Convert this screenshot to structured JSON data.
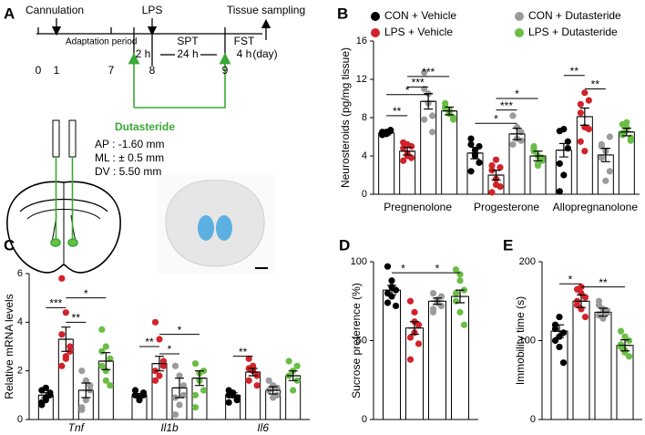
{
  "panel_labels": [
    "A",
    "B",
    "C",
    "D",
    "E"
  ],
  "timeline": {
    "cannulation": "Cannulation",
    "adaptation": "Adaptation period",
    "lps": "LPS",
    "tissue": "Tissue sampling",
    "spt": "SPT",
    "fst": "FST",
    "h2": "2 h",
    "h24": "24 h",
    "h4": "4 h",
    "unit": "(day)",
    "day_labels": [
      "0",
      "1",
      "7",
      "8",
      "9"
    ],
    "drug": "Dutasteride",
    "coords": [
      "AP : -1.60 mm",
      "ML : ± 0.5 mm",
      "DV : 5.50 mm"
    ]
  },
  "chart_data": [
    {
      "type": "bar",
      "ylabel": "Neurosteroids (pg/mg tissue)",
      "categories": [
        "Pregnenolone",
        "Progesterone",
        "Allopregnanolone"
      ],
      "ylim": [
        0,
        16
      ],
      "yticks": [
        0,
        4,
        8,
        12,
        16
      ],
      "legend": "top",
      "series": [
        {
          "name": "CON + Vehicle",
          "color": "#000000",
          "values": [
            6.4,
            4.3,
            4.6
          ],
          "errors": [
            0.2,
            0.6,
            0.7
          ],
          "points": [
            [
              6.5,
              6.3,
              6.6,
              6.2,
              6.4,
              6.7,
              6.3,
              6.5
            ],
            [
              5.2,
              4.6,
              3.3,
              2.4,
              4.0,
              5.0,
              5.8,
              4.2
            ],
            [
              0.3,
              2.0,
              4.8,
              6.6,
              6.8,
              5.5,
              3.2
            ]
          ]
        },
        {
          "name": "LPS + Vehicle",
          "color": "#d2232a",
          "values": [
            4.5,
            2.0,
            8.1
          ],
          "errors": [
            0.4,
            0.5,
            0.9
          ],
          "points": [
            [
              5.4,
              4.0,
              3.8,
              4.8,
              4.2,
              5.0,
              3.5,
              5.2
            ],
            [
              0.2,
              1.0,
              2.8,
              2.5,
              1.6,
              0.8,
              3.0,
              3.6
            ],
            [
              5.5,
              10.6,
              9.8,
              9.4,
              7.0,
              6.8,
              8.5,
              4.5
            ]
          ]
        },
        {
          "name": "CON + Dutasteride",
          "color": "#9b9b9b",
          "values": [
            9.7,
            6.3,
            4.1
          ],
          "errors": [
            0.8,
            0.6,
            0.7
          ],
          "points": [
            [
              12.7,
              10.5,
              8.2,
              7.8,
              9.5,
              6.5,
              11.0
            ],
            [
              8.2,
              5.8,
              6.5,
              5.2,
              7.0,
              5.6
            ],
            [
              5.2,
              1.4,
              2.4,
              3.8,
              4.5,
              6.0,
              5.0
            ]
          ]
        },
        {
          "name": "LPS + Dutasteride",
          "color": "#6abd45",
          "values": [
            8.7,
            4.0,
            6.5
          ],
          "errors": [
            0.4,
            0.5,
            0.4
          ],
          "points": [
            [
              9.5,
              8.4,
              7.8,
              9.0,
              8.8,
              8.0,
              9.2,
              8.6
            ],
            [
              5.0,
              3.0,
              3.8,
              4.5,
              4.0,
              3.5,
              4.8,
              3.2
            ],
            [
              7.3,
              6.8,
              5.9,
              6.4,
              7.0,
              5.6,
              6.2,
              7.5
            ]
          ]
        }
      ],
      "annotations": [
        {
          "group": 0,
          "from": 0,
          "to": 1,
          "label": "**",
          "y": 8.2
        },
        {
          "group": 0,
          "from": 0,
          "to": 2,
          "label": "*",
          "y": 10.4
        },
        {
          "group": 0,
          "from": 1,
          "to": 2,
          "label": "***",
          "y": 11.2
        },
        {
          "group": 0,
          "from": 1,
          "to": 3,
          "label": "***",
          "y": 12.3
        },
        {
          "group": 1,
          "from": 0,
          "to": 2,
          "label": "*",
          "y": 7.4
        },
        {
          "group": 1,
          "from": 1,
          "to": 2,
          "label": "***",
          "y": 8.8
        },
        {
          "group": 1,
          "from": 1,
          "to": 3,
          "label": "*",
          "y": 10.0
        },
        {
          "group": 2,
          "from": 0,
          "to": 1,
          "label": "**",
          "y": 12.4
        },
        {
          "group": 2,
          "from": 1,
          "to": 2,
          "label": "**",
          "y": 11.0
        }
      ]
    },
    {
      "type": "bar",
      "ylabel": "Relative mRNA levels",
      "categories": [
        "Tnf",
        "Il1b",
        "Il6"
      ],
      "ylim": [
        0,
        6
      ],
      "yticks": [
        0,
        2,
        4,
        6
      ],
      "series": [
        {
          "name": "CON + Vehicle",
          "color": "#000000",
          "values": [
            1.0,
            1.0,
            1.0
          ],
          "errors": [
            0.1,
            0.07,
            0.1
          ],
          "points": [
            [
              0.6,
              0.8,
              1.0,
              1.2,
              0.9,
              1.1,
              0.7,
              1.3
            ],
            [
              1.0,
              0.9,
              1.1,
              1.2,
              0.8,
              1.0
            ],
            [
              1.2,
              1.0,
              0.8,
              1.0,
              1.1,
              0.9,
              0.7
            ]
          ]
        },
        {
          "name": "LPS + Vehicle",
          "color": "#d2232a",
          "values": [
            3.3,
            2.3,
            1.95
          ],
          "errors": [
            0.5,
            0.3,
            0.15
          ],
          "points": [
            [
              5.8,
              4.4,
              3.0,
              2.2,
              2.6,
              2.8,
              3.5,
              2.5
            ],
            [
              4.0,
              3.3,
              2.2,
              1.6,
              1.8,
              2.4,
              2.0
            ],
            [
              2.5,
              2.2,
              1.8,
              1.6,
              2.0,
              1.4,
              2.1
            ]
          ]
        },
        {
          "name": "CON + Dutasteride",
          "color": "#9b9b9b",
          "values": [
            1.2,
            1.3,
            1.2
          ],
          "errors": [
            0.3,
            0.4,
            0.15
          ],
          "points": [
            [
              2.0,
              1.6,
              1.2,
              0.5,
              0.8,
              1.4,
              0.4
            ],
            [
              2.2,
              1.8,
              1.0,
              0.2,
              0.6,
              1.4,
              0.9
            ],
            [
              1.6,
              1.4,
              1.0,
              1.2,
              0.9,
              1.3
            ]
          ]
        },
        {
          "name": "LPS + Dutasteride",
          "color": "#6abd45",
          "values": [
            2.4,
            1.7,
            1.8
          ],
          "errors": [
            0.35,
            0.3,
            0.2
          ],
          "points": [
            [
              3.7,
              3.0,
              2.5,
              2.2,
              1.6,
              1.4,
              2.8,
              2.0
            ],
            [
              2.3,
              1.6,
              1.2,
              0.5,
              1.9,
              2.0,
              1.0
            ],
            [
              2.4,
              2.0,
              1.6,
              1.8,
              1.2,
              2.2
            ]
          ]
        }
      ],
      "annotations": [
        {
          "group": 0,
          "from": 0,
          "to": 1,
          "label": "***",
          "y": 4.6
        },
        {
          "group": 0,
          "from": 1,
          "to": 2,
          "label": "**",
          "y": 4.0
        },
        {
          "group": 0,
          "from": 1,
          "to": 3,
          "label": "*",
          "y": 5.0
        },
        {
          "group": 1,
          "from": 0,
          "to": 1,
          "label": "**",
          "y": 3.0
        },
        {
          "group": 1,
          "from": 1,
          "to": 2,
          "label": "*",
          "y": 2.7
        },
        {
          "group": 1,
          "from": 1,
          "to": 3,
          "label": "*",
          "y": 3.5
        },
        {
          "group": 2,
          "from": 0,
          "to": 1,
          "label": "**",
          "y": 2.6
        }
      ]
    },
    {
      "type": "bar",
      "ylabel": "Sucrose preference (%)",
      "ylim": [
        0,
        100
      ],
      "yticks": [
        0,
        50,
        100
      ],
      "series": [
        {
          "name": "CON + Vehicle",
          "color": "#000000",
          "values": [
            82
          ],
          "errors": [
            3
          ],
          "points": [
            [
              97,
              88,
              82,
              80,
              78,
              72,
              74,
              84
            ]
          ]
        },
        {
          "name": "LPS + Vehicle",
          "color": "#d2232a",
          "values": [
            58
          ],
          "errors": [
            4
          ],
          "points": [
            [
              75,
              68,
              60,
              52,
              55,
              48,
              38,
              62
            ]
          ]
        },
        {
          "name": "CON + Dutasteride",
          "color": "#9b9b9b",
          "values": [
            75
          ],
          "errors": [
            2
          ],
          "points": [
            [
              80,
              76,
              72,
              68,
              74,
              78,
              70
            ]
          ]
        },
        {
          "name": "LPS + Dutasteride",
          "color": "#6abd45",
          "values": [
            78
          ],
          "errors": [
            4
          ],
          "points": [
            [
              95,
              88,
              82,
              75,
              68,
              60,
              80,
              92
            ]
          ]
        }
      ],
      "annotations": [
        {
          "group": 0,
          "from": 0,
          "to": 1,
          "label": "*",
          "y": 93
        },
        {
          "group": 0,
          "from": 1,
          "to": 3,
          "label": "*",
          "y": 93
        }
      ]
    },
    {
      "type": "bar",
      "ylabel": "Immobility time (s)",
      "ylim": [
        0,
        200
      ],
      "yticks": [
        0,
        100,
        200
      ],
      "series": [
        {
          "name": "CON + Vehicle",
          "color": "#000000",
          "values": [
            112
          ],
          "errors": [
            8
          ],
          "points": [
            [
              120,
              130,
              110,
              100,
              92,
              72,
              115,
              105
            ]
          ]
        },
        {
          "name": "LPS + Vehicle",
          "color": "#d2232a",
          "values": [
            150
          ],
          "errors": [
            8
          ],
          "points": [
            [
              165,
              160,
              155,
              145,
              140,
              130,
              150,
              168
            ]
          ]
        },
        {
          "name": "CON + Dutasteride",
          "color": "#9b9b9b",
          "values": [
            136
          ],
          "errors": [
            5
          ],
          "points": [
            [
              150,
              140,
              135,
              132,
              128,
              138,
              145
            ]
          ]
        },
        {
          "name": "LPS + Dutasteride",
          "color": "#6abd45",
          "values": [
            94
          ],
          "errors": [
            7
          ],
          "points": [
            [
              112,
              105,
              100,
              95,
              88,
              80,
              92,
              85
            ]
          ]
        }
      ],
      "annotations": [
        {
          "group": 0,
          "from": 0,
          "to": 1,
          "label": "*",
          "y": 172
        },
        {
          "group": 0,
          "from": 1,
          "to": 3,
          "label": "**",
          "y": 168
        }
      ]
    }
  ]
}
